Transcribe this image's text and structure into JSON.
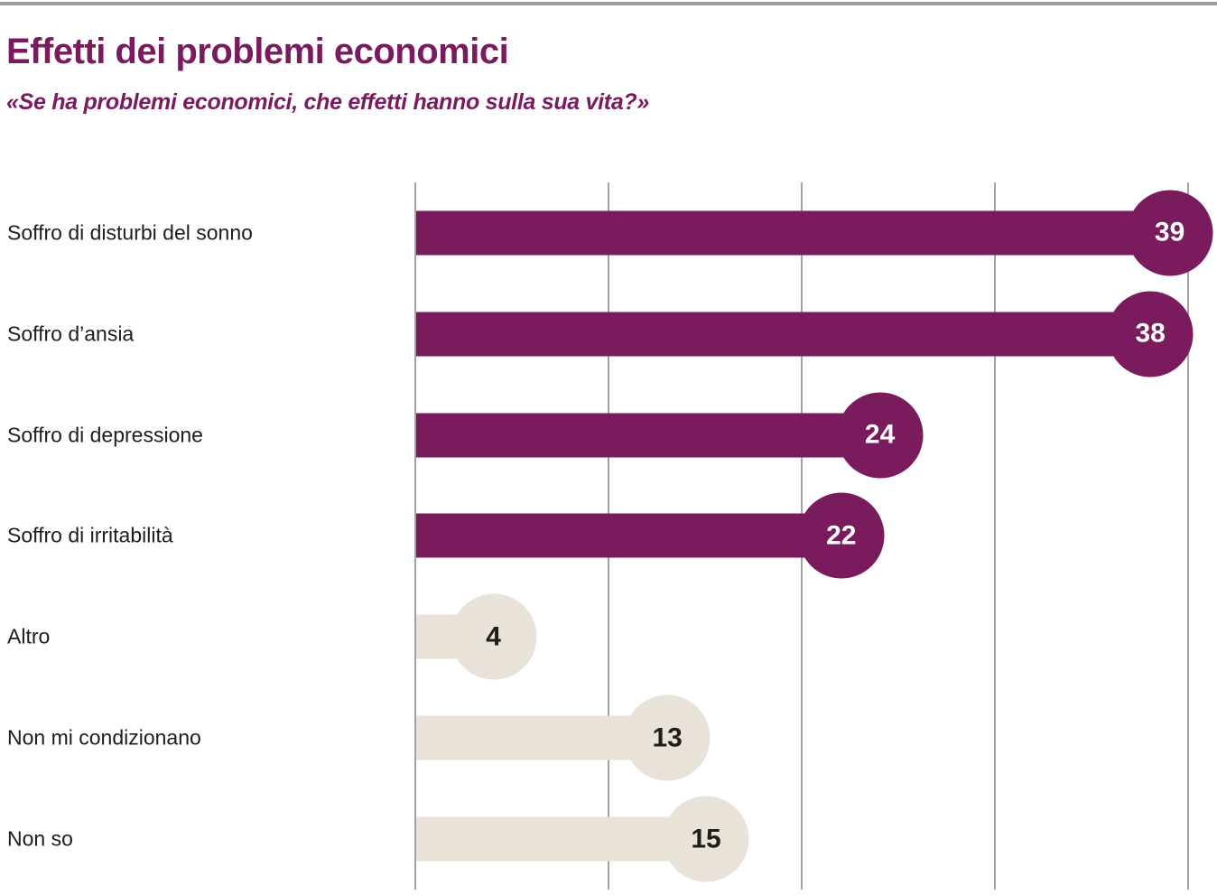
{
  "header": {
    "title": "Effetti dei problemi economici",
    "subtitle": "«Se ha problemi economici, che effetti hanno sulla sua vita?»"
  },
  "chart_data": {
    "type": "bar",
    "style": "lollipop",
    "orientation": "horizontal",
    "title": "Effetti dei problemi economici",
    "subtitle": "«Se ha problemi economici, che effetti hanno sulla sua vita?»",
    "categories": [
      "Soffro di disturbi del sonno",
      "Soffro d’ansia",
      "Soffro di depressione",
      "Soffro di irritabilità",
      "Altro",
      "Non mi condizionano",
      "Non so"
    ],
    "values": [
      39,
      38,
      24,
      22,
      4,
      13,
      15
    ],
    "rows": [
      {
        "label": "Soffro di disturbi del sonno",
        "value": 39,
        "bar_color": "#7a1b5e",
        "value_text_color": "#ffffff"
      },
      {
        "label": "Soffro d’ansia",
        "value": 38,
        "bar_color": "#7a1b5e",
        "value_text_color": "#ffffff"
      },
      {
        "label": "Soffro di depressione",
        "value": 24,
        "bar_color": "#7a1b5e",
        "value_text_color": "#ffffff"
      },
      {
        "label": "Soffro di irritabilità",
        "value": 22,
        "bar_color": "#7a1b5e",
        "value_text_color": "#ffffff"
      },
      {
        "label": "Altro",
        "value": 4,
        "bar_color": "#e8e2d8",
        "value_text_color": "#1d1d1b"
      },
      {
        "label": "Non mi condizionano",
        "value": 13,
        "bar_color": "#e8e2d8",
        "value_text_color": "#1d1d1b"
      },
      {
        "label": "Non so",
        "value": 15,
        "bar_color": "#e8e2d8",
        "value_text_color": "#1d1d1b"
      }
    ],
    "x_axis": {
      "min": 0,
      "max": 41.5,
      "gridlines": [
        0,
        10,
        20,
        30,
        40
      ],
      "tick_labels_visible": false
    },
    "value_labels_visible": true,
    "legend": "none",
    "colors": {
      "primary": "#7a1b5e",
      "secondary": "#e8e2d8",
      "grid": "#a3a3a3",
      "category_text": "#1d1d1b",
      "title_text": "#7a1b5e",
      "top_rule": "#9c9c9c"
    }
  }
}
